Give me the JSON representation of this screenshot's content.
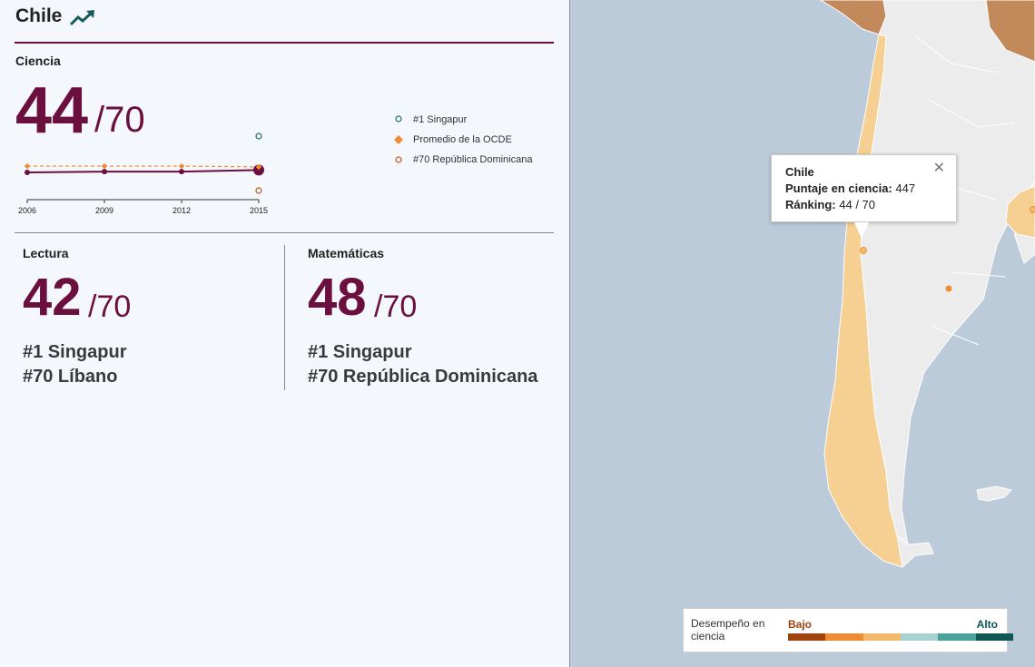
{
  "country": {
    "name": "Chile",
    "trend_icon": "trending-up-icon"
  },
  "science": {
    "label": "Ciencia",
    "rank": "44",
    "total": "/70",
    "legend": [
      {
        "label": "#1 Singapur",
        "marker": "circle-open",
        "color": "#1e6b63"
      },
      {
        "label": "Promedio de la OCDE",
        "marker": "diamond",
        "color": "#ef8b33"
      },
      {
        "label": "#70 República Dominicana",
        "marker": "circle-open",
        "color": "#c1551b"
      }
    ]
  },
  "chart_data": {
    "type": "line",
    "x": [
      "2006",
      "2009",
      "2012",
      "2015"
    ],
    "series": [
      {
        "name": "Chile",
        "values": [
          47,
          46,
          46,
          44
        ],
        "color": "#6b0f3f"
      },
      {
        "name": "Promedio de la OCDE",
        "values": [
          39,
          39,
          39,
          40
        ],
        "color": "#ef8b33",
        "style": "dashed"
      }
    ],
    "markers_2015": {
      "#1 Singapur": 1,
      "#70 República Dominicana": 70
    },
    "y_rank_inverted": true
  },
  "reading": {
    "label": "Lectura",
    "rank": "42",
    "total": "/70",
    "top": "#1 Singapur",
    "bottom": "#70 Líbano"
  },
  "math": {
    "label": "Matemáticas",
    "rank": "48",
    "total": "/70",
    "top": "#1 Singapur",
    "bottom": "#70 República Dominicana"
  },
  "tooltip": {
    "title": "Chile",
    "score_label": "Puntaje en ciencia:",
    "score_value": "447",
    "rank_label": "Ránking:",
    "rank_value": "44 / 70",
    "close_icon": "close-icon"
  },
  "map_legend": {
    "label": "Desempeño en ciencia",
    "low": "Bajo",
    "high": "Alto",
    "colors": [
      "#a0430f",
      "#ef8b33",
      "#f3b96a",
      "#a9d0d0",
      "#4aa39b",
      "#0f5655"
    ]
  },
  "map_colors": {
    "ocean": "#bccbda",
    "land_nodata": "#ececec",
    "chile": "#f6cf92",
    "neighbor_low": "#c2895b"
  }
}
